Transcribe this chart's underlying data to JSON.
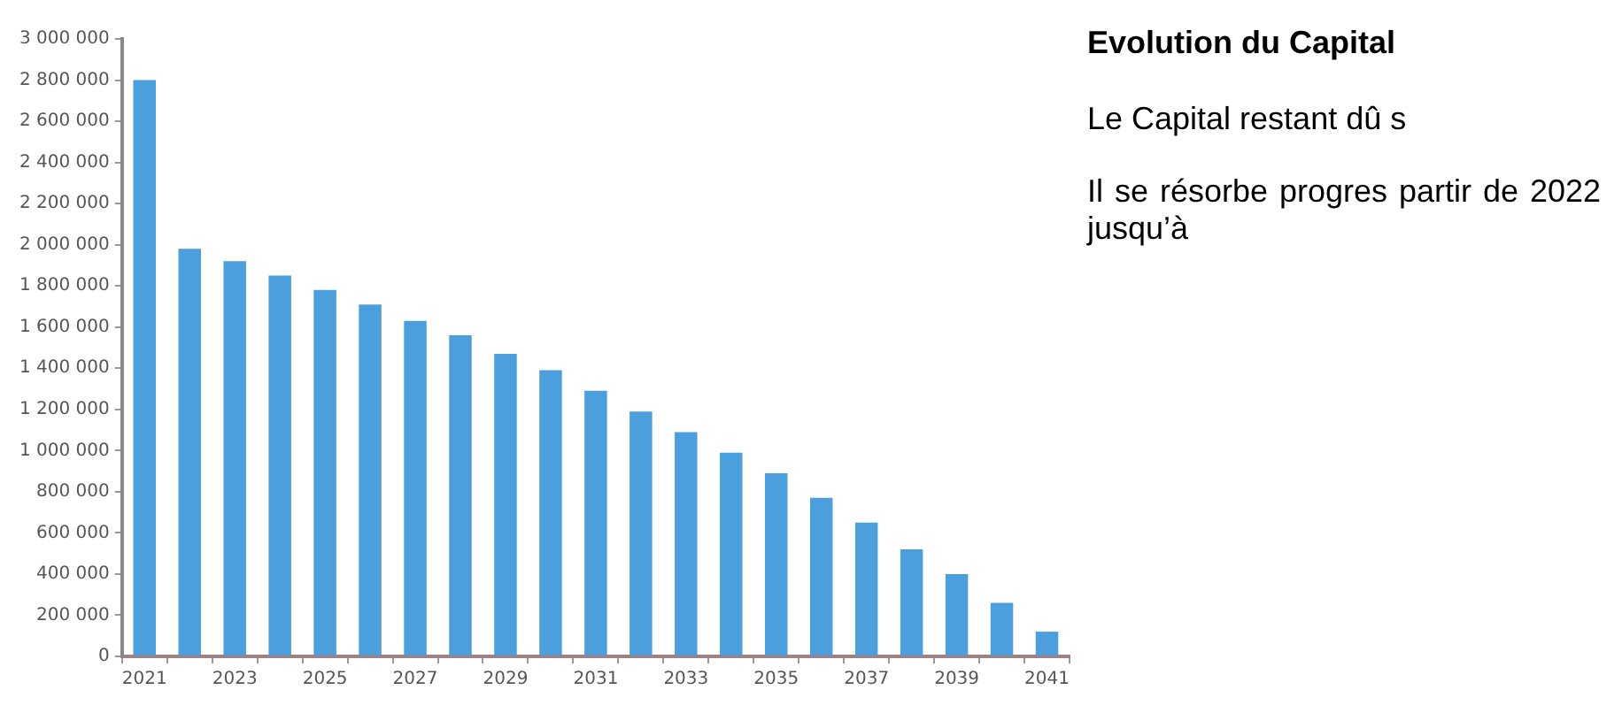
{
  "chart_data": {
    "type": "bar",
    "title": "Evolution du Capital",
    "annotations": [
      "Le Capital restant dû s",
      "Il se résorbe progres partir de 2022 jusqu’à"
    ],
    "categories": [
      "2021",
      null,
      "2023",
      null,
      "2025",
      null,
      "2027",
      null,
      "2029",
      null,
      "2031",
      null,
      "2033",
      null,
      "2035",
      null,
      "2037",
      null,
      "2039",
      null,
      "2041"
    ],
    "values": [
      2800000,
      1980000,
      1920000,
      1850000,
      1780000,
      1710000,
      1630000,
      1560000,
      1470000,
      1390000,
      1290000,
      1190000,
      1090000,
      990000,
      890000,
      770000,
      650000,
      520000,
      400000,
      260000,
      120000
    ],
    "color": "#4a9fdc",
    "ylim": [
      0,
      3000000
    ],
    "yticks": [
      {
        "value": 0,
        "label": "0"
      },
      {
        "value": 200000,
        "label": "200 000"
      },
      {
        "value": 400000,
        "label": "400 000"
      },
      {
        "value": 600000,
        "label": "600 000"
      },
      {
        "value": 800000,
        "label": "800 000"
      },
      {
        "value": 1000000,
        "label": "1 000 000"
      },
      {
        "value": 1200000,
        "label": "1 200 000"
      },
      {
        "value": 1400000,
        "label": "1 400 000"
      },
      {
        "value": 1600000,
        "label": "1 600 000"
      },
      {
        "value": 1800000,
        "label": "1 800 000"
      },
      {
        "value": 2000000,
        "label": "2 000 000"
      },
      {
        "value": 2200000,
        "label": "2 200 000"
      },
      {
        "value": 2400000,
        "label": "2 400 000"
      },
      {
        "value": 2600000,
        "label": "2 600 000"
      },
      {
        "value": 2800000,
        "label": "2 800 000"
      },
      {
        "value": 3000000,
        "label": "3 000 000"
      }
    ],
    "grid": false,
    "legend": false
  }
}
